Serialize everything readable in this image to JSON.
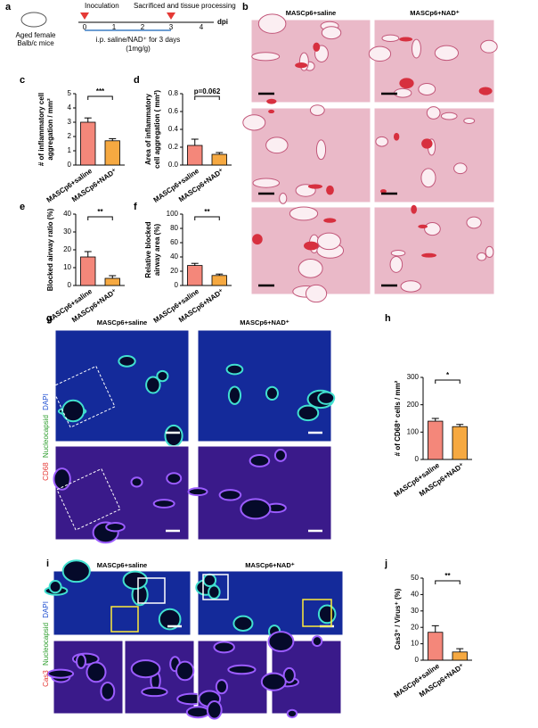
{
  "panels": {
    "a": {
      "letter": "a",
      "inoculation": "Inoculation",
      "sacrificed": "Sacrificed and tissue processing",
      "days": [
        "0",
        "1",
        "2",
        "3",
        "4"
      ],
      "unit": "dpi",
      "mice": [
        "Aged female",
        "Balb/c mice"
      ],
      "treatment": "i.p. saline/NAD⁺ for 3 days",
      "dose": "(1mg/g)"
    },
    "b": {
      "letter": "b",
      "columns": [
        "MASCp6+saline",
        "MASCp6+NAD⁺"
      ]
    },
    "c": {
      "letter": "c"
    },
    "d": {
      "letter": "d"
    },
    "e": {
      "letter": "e"
    },
    "f": {
      "letter": "f"
    },
    "g": {
      "letter": "g",
      "columns": [
        "MASCp6+saline",
        "MASCp6+NAD⁺"
      ],
      "stain": [
        "CD68",
        "Nucleocapsid",
        "DAPI"
      ]
    },
    "h": {
      "letter": "h"
    },
    "i": {
      "letter": "i",
      "columns": [
        "MASCp6+saline",
        "MASCp6+NAD⁺"
      ],
      "stain": [
        "Cas3",
        "Nucleocapsid",
        "DAPI"
      ]
    },
    "j": {
      "letter": "j"
    }
  },
  "chart_data": [
    {
      "type": "bar",
      "categories": [
        "MASCp6+saline",
        "MASCp6+NAD⁺"
      ],
      "values": [
        3.0,
        1.7
      ],
      "errors": [
        0.3,
        0.15
      ],
      "colors": [
        "#f4877a",
        "#f6a941"
      ],
      "ylabel": [
        "# of inflammatory cell",
        "aggregation / mm²"
      ],
      "ylim": [
        0,
        5
      ],
      "yticks": [
        0,
        1,
        2,
        3,
        4,
        5
      ],
      "annotation": "***"
    },
    {
      "type": "bar",
      "categories": [
        "MASCp6+saline",
        "MASCp6+NAD⁺"
      ],
      "values": [
        0.22,
        0.12
      ],
      "errors": [
        0.07,
        0.02
      ],
      "colors": [
        "#f4877a",
        "#f6a941"
      ],
      "ylabel": [
        "Area of inflammatory",
        "cell aggregation ( mm²)"
      ],
      "ylim": [
        0,
        0.8
      ],
      "yticks": [
        {
          "value": 0,
          "label": "0.0"
        },
        0.2,
        0.4,
        0.6,
        0.8
      ],
      "annotation": "p=0.062"
    },
    {
      "type": "bar",
      "categories": [
        "MASCp6+saline",
        "MASCp6+NAD⁺"
      ],
      "values": [
        16,
        4
      ],
      "errors": [
        3,
        1.5
      ],
      "colors": [
        "#f4877a",
        "#f6a941"
      ],
      "ylabel": [
        "Blocked airway ratio (%)"
      ],
      "ylim": [
        0,
        40
      ],
      "yticks": [
        0,
        10,
        20,
        30,
        40
      ],
      "annotation": "**"
    },
    {
      "type": "bar",
      "categories": [
        "MASCp6+saline",
        "MASCp6+NAD⁺"
      ],
      "values": [
        28,
        14
      ],
      "errors": [
        3,
        2
      ],
      "colors": [
        "#f4877a",
        "#f6a941"
      ],
      "ylabel": [
        "Relative blocked",
        "airway area (%)"
      ],
      "ylim": [
        0,
        100
      ],
      "yticks": [
        0,
        20,
        40,
        60,
        80,
        100
      ],
      "annotation": "**"
    },
    {
      "type": "bar",
      "categories": [
        "MASCp6+saline",
        "MASCp6+NAD⁺"
      ],
      "values": [
        140,
        120
      ],
      "errors": [
        10,
        8
      ],
      "colors": [
        "#f4877a",
        "#f6a941"
      ],
      "ylabel": [
        "# of CD68⁺ cells / mm²"
      ],
      "ylim": [
        0,
        300
      ],
      "yticks": [
        0,
        100,
        200,
        300
      ],
      "annotation": "*"
    },
    {
      "type": "bar",
      "categories": [
        "MASCp6+saline",
        "MASCp6+NAD⁺"
      ],
      "values": [
        17,
        5
      ],
      "errors": [
        4,
        2
      ],
      "colors": [
        "#f4877a",
        "#f6a941"
      ],
      "ylabel": [
        "Cas3⁺ / Virus⁺ (%)"
      ],
      "ylim": [
        0,
        50
      ],
      "yticks": [
        0,
        10,
        20,
        30,
        40,
        50
      ],
      "annotation": "**"
    }
  ]
}
